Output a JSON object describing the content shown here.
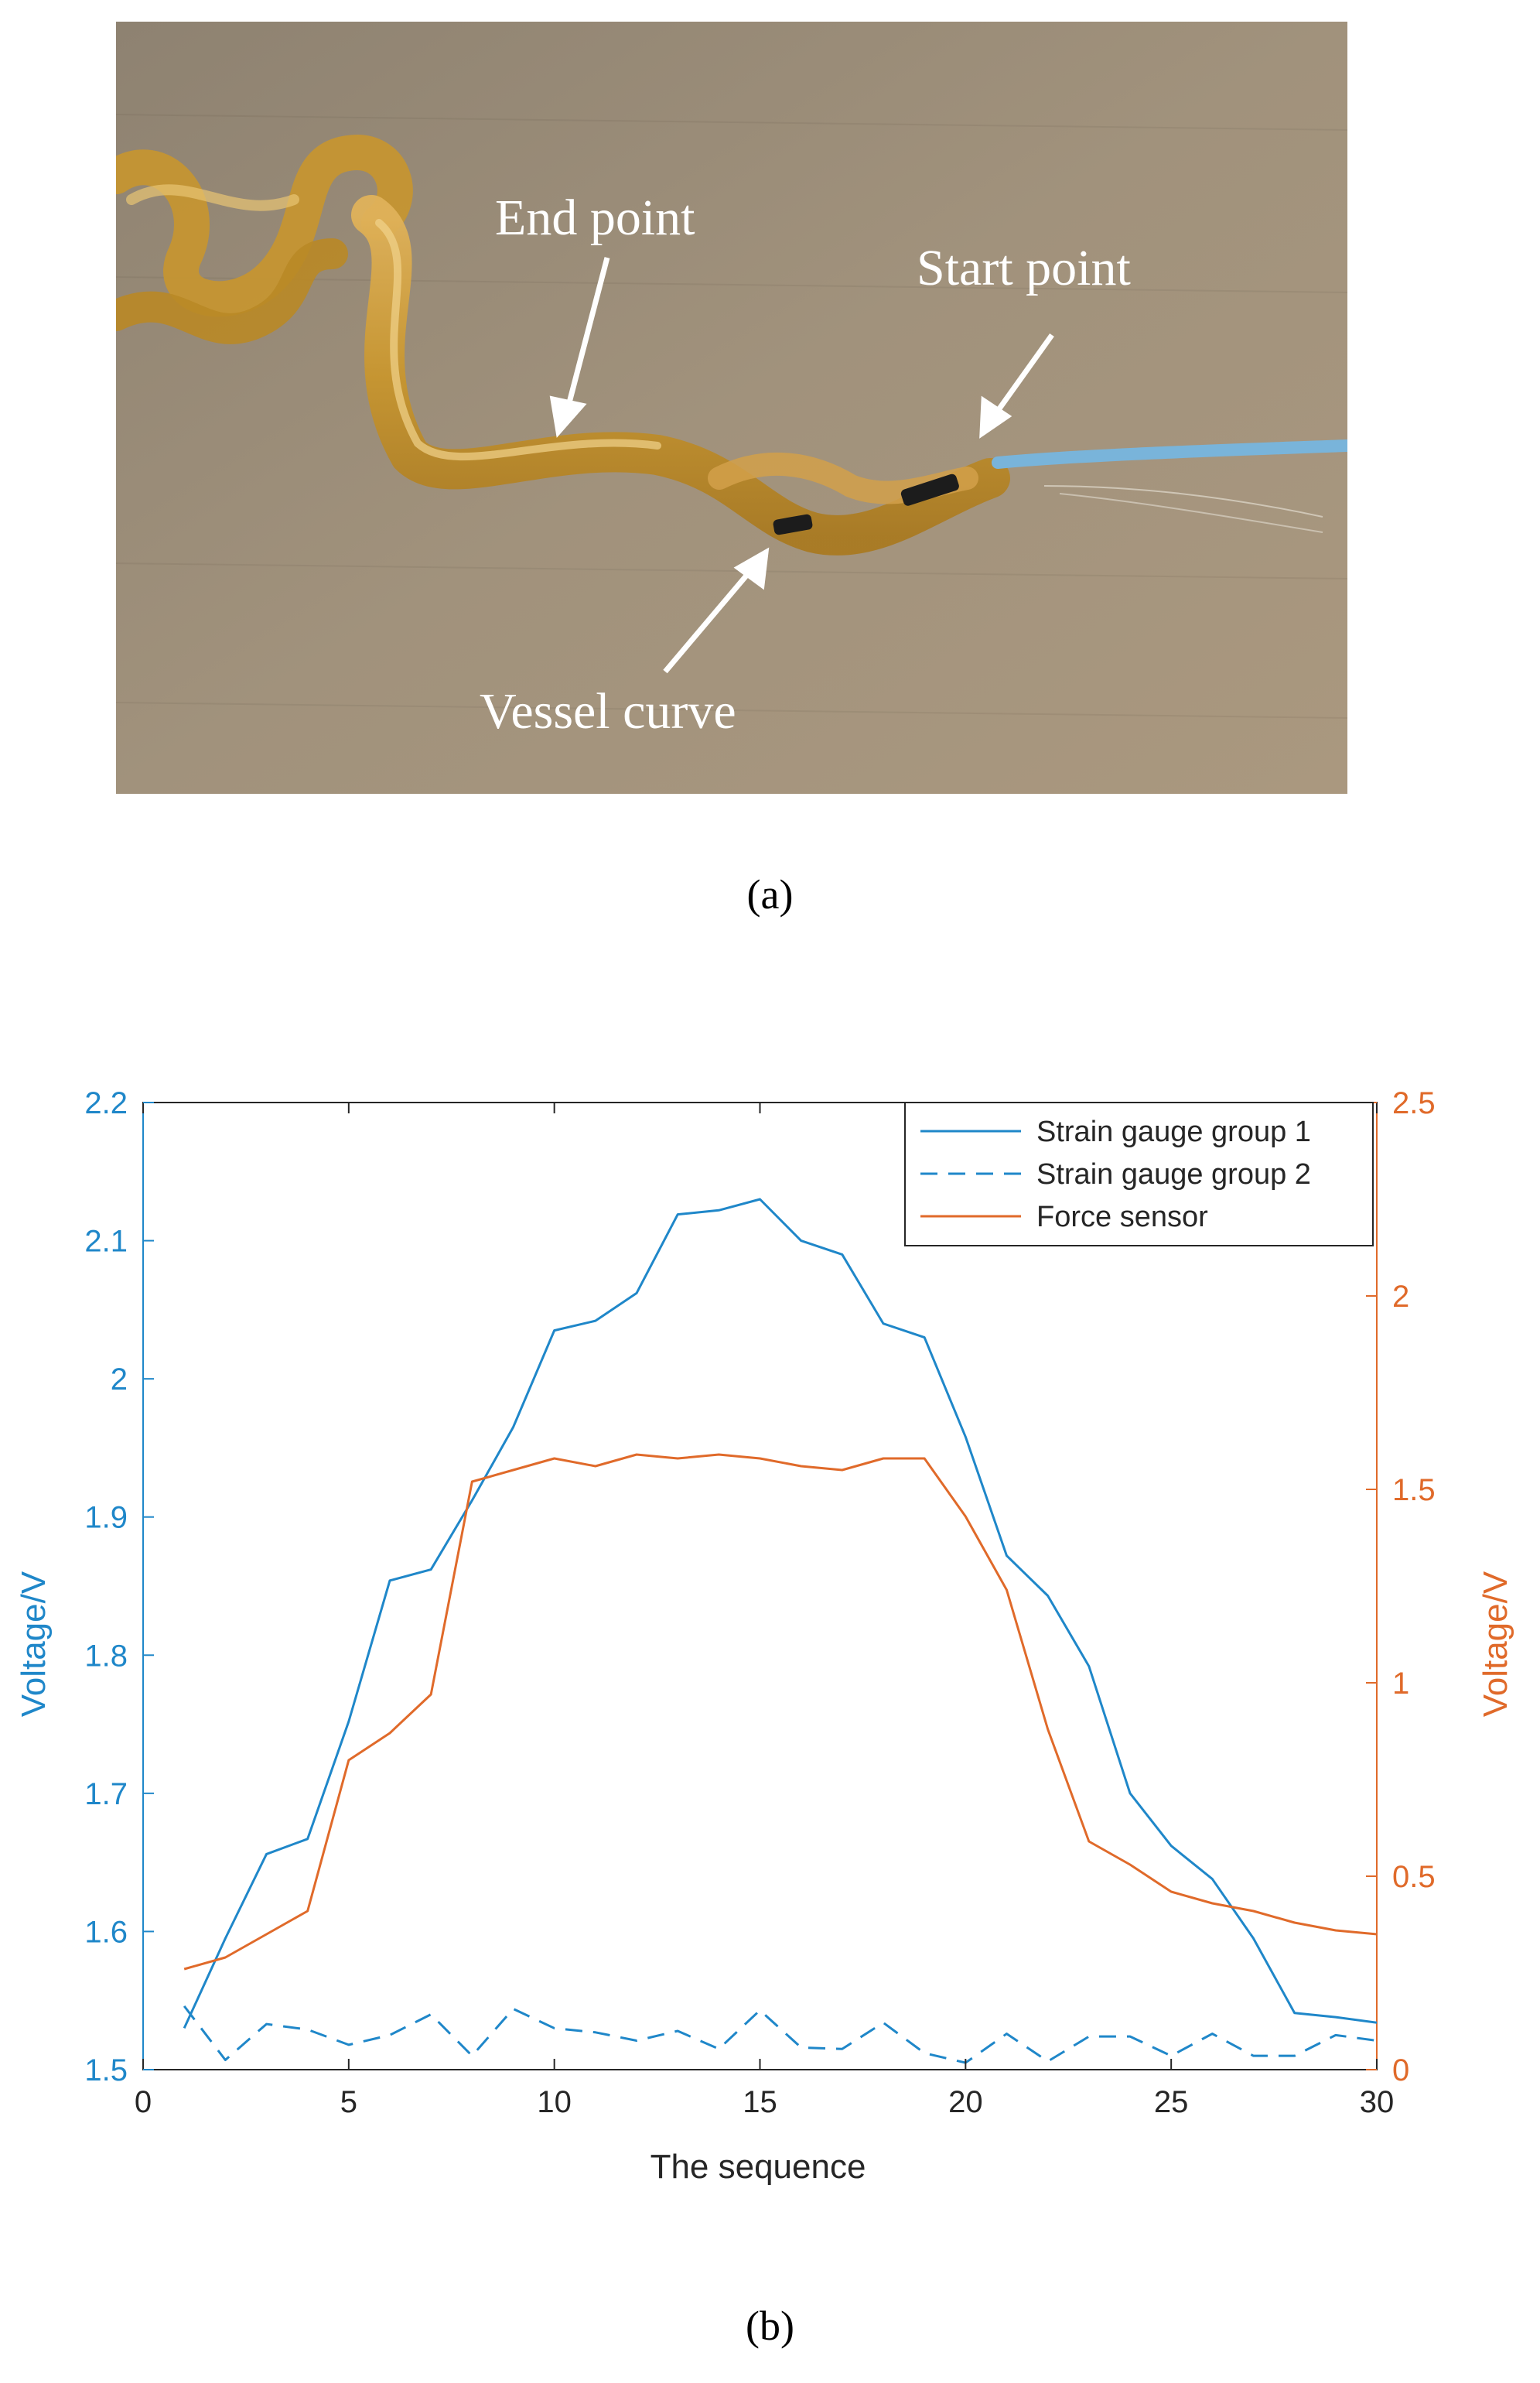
{
  "figure": {
    "panel_a_label": "(a)",
    "panel_b_label": "(b)"
  },
  "photo": {
    "description_icon": "catheter-vessel-photo",
    "annotations": {
      "end_point": "End point",
      "start_point": "Start point",
      "vessel_curve": "Vessel curve"
    }
  },
  "chart_data": {
    "type": "line",
    "title": "",
    "xlabel": "The sequence",
    "ylabel_left": "Voltage/V",
    "ylabel_right": "Voltage/V",
    "xlim": [
      0,
      30
    ],
    "ylim_left": [
      1.5,
      2.2
    ],
    "ylim_right": [
      0,
      2.5
    ],
    "xticks": [
      "0",
      "5",
      "10",
      "15",
      "20",
      "25",
      "30"
    ],
    "yticks_left": [
      "1.5",
      "1.6",
      "1.7",
      "1.8",
      "1.9",
      "2",
      "2.1",
      "2.2"
    ],
    "yticks_right": [
      "0",
      "0.5",
      "1",
      "1.5",
      "2",
      "2.5"
    ],
    "legend_position": "top-right",
    "grid": false,
    "x": [
      1,
      2,
      3,
      4,
      5,
      6,
      7,
      8,
      9,
      10,
      11,
      12,
      13,
      14,
      15,
      16,
      17,
      18,
      19,
      20,
      21,
      22,
      23,
      24,
      25,
      26,
      27,
      28,
      29,
      30
    ],
    "series": [
      {
        "name": "Strain gauge group 1",
        "axis": "left",
        "style": "solid",
        "color": "#1f87c9",
        "values": [
          1.53,
          1.595,
          1.656,
          1.667,
          1.752,
          1.854,
          1.862,
          1.912,
          1.965,
          2.035,
          2.042,
          2.062,
          2.119,
          2.122,
          2.13,
          2.1,
          2.09,
          2.04,
          2.03,
          1.958,
          1.872,
          1.843,
          1.792,
          1.7,
          1.662,
          1.638,
          1.595,
          1.541,
          1.538,
          1.534
        ]
      },
      {
        "name": "Strain gauge group 2",
        "axis": "left",
        "style": "dashed",
        "color": "#1f87c9",
        "values": [
          1.546,
          1.507,
          1.533,
          1.529,
          1.518,
          1.525,
          1.54,
          1.51,
          1.544,
          1.53,
          1.527,
          1.521,
          1.528,
          1.515,
          1.543,
          1.516,
          1.515,
          1.534,
          1.512,
          1.505,
          1.526,
          1.506,
          1.524,
          1.524,
          1.51,
          1.526,
          1.51,
          1.51,
          1.525,
          1.521
        ]
      },
      {
        "name": "Force sensor",
        "axis": "right",
        "style": "solid",
        "color": "#e06a2a",
        "values": [
          0.26,
          0.29,
          0.35,
          0.41,
          0.8,
          0.87,
          0.97,
          1.52,
          1.55,
          1.58,
          1.56,
          1.59,
          1.58,
          1.59,
          1.58,
          1.56,
          1.55,
          1.58,
          1.58,
          1.43,
          1.24,
          0.88,
          0.59,
          0.53,
          0.46,
          0.43,
          0.41,
          0.38,
          0.36,
          0.35
        ]
      }
    ]
  }
}
